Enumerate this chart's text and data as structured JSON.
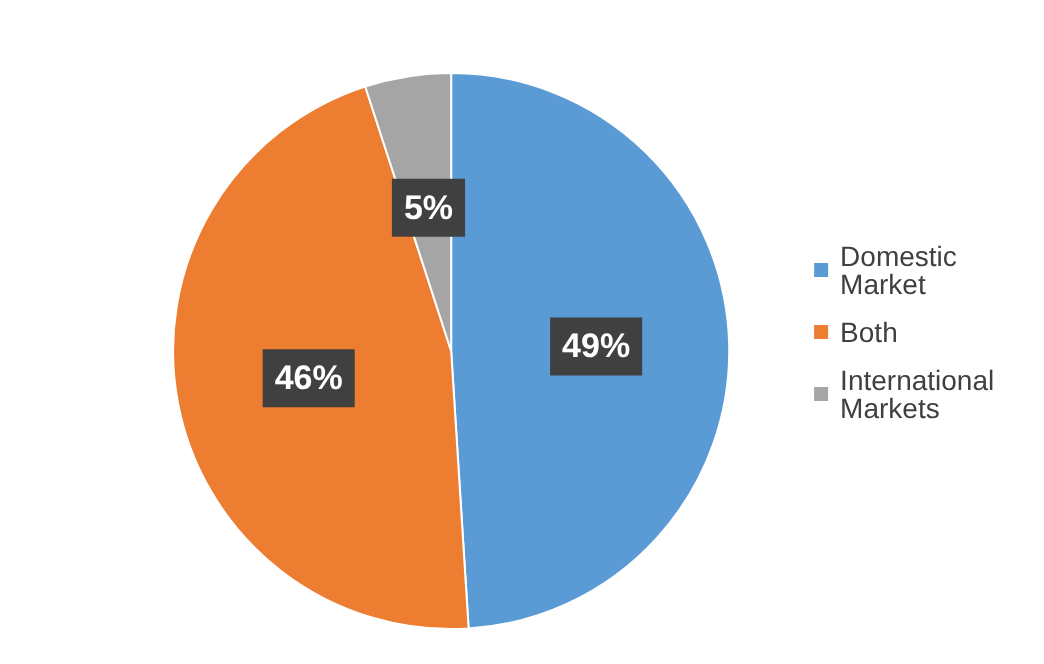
{
  "chart_data": {
    "type": "pie",
    "categories": [
      "Domestic Market",
      "Both",
      "International Markets"
    ],
    "values": [
      49,
      46,
      5
    ],
    "colors": [
      "#5b9bd5",
      "#ed7d31",
      "#a5a5a5"
    ],
    "value_labels": [
      "49%",
      "46%",
      "5%"
    ],
    "legend": "right"
  }
}
